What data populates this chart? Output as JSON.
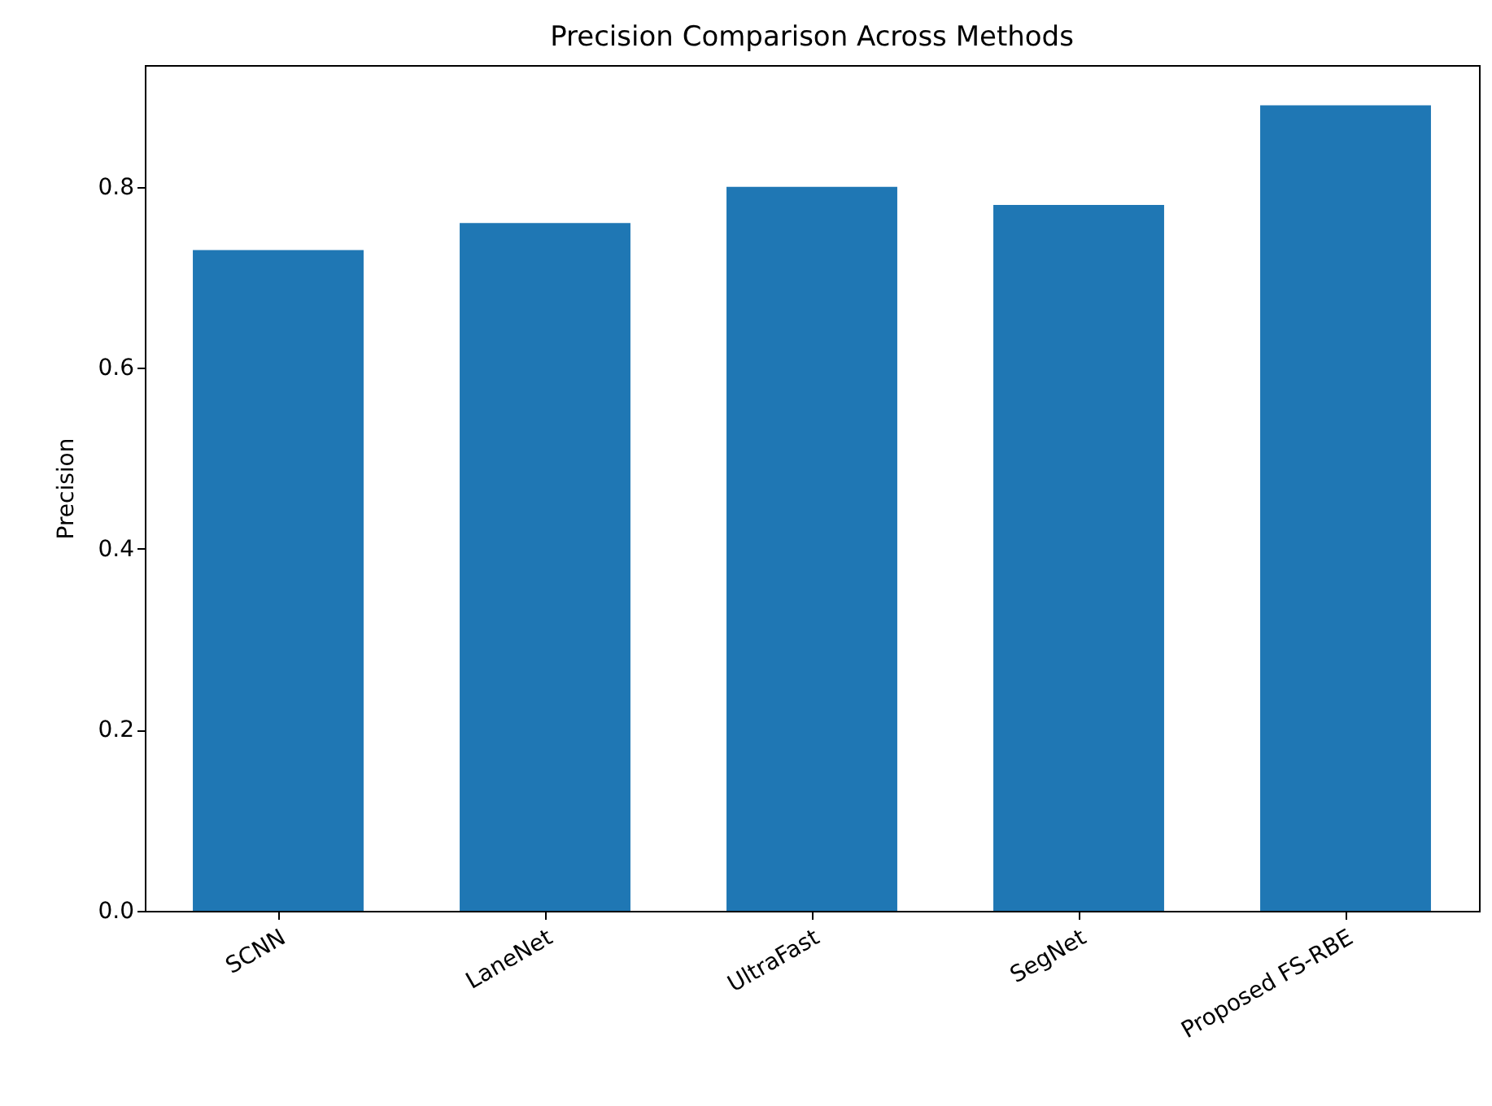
{
  "chart_data": {
    "type": "bar",
    "title": "Precision Comparison Across Methods",
    "ylabel": "Precision",
    "categories": [
      "SCNN",
      "LaneNet",
      "UltraFast",
      "SegNet",
      "Proposed FS-RBE"
    ],
    "values": [
      0.73,
      0.76,
      0.8,
      0.78,
      0.89
    ],
    "color": "#1f77b4",
    "ylim": [
      0,
      0.9345
    ],
    "yticks": [
      {
        "value": 0,
        "label": "0.0"
      },
      {
        "value": 0.2,
        "label": "0.2"
      },
      {
        "value": 0.4,
        "label": "0.4"
      },
      {
        "value": 0.6,
        "label": "0.6"
      },
      {
        "value": 0.8,
        "label": "0.8"
      }
    ],
    "grid": false
  }
}
